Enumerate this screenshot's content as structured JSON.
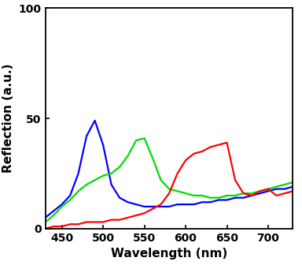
{
  "chart_data": {
    "type": "line",
    "x_label": "Wavelength (nm)",
    "y_label": "Reflection (a.u.)",
    "x": [
      430,
      440,
      450,
      460,
      470,
      480,
      490,
      500,
      510,
      520,
      530,
      540,
      550,
      560,
      570,
      580,
      590,
      600,
      610,
      620,
      630,
      640,
      650,
      660,
      670,
      680,
      690,
      700,
      710,
      720,
      730
    ],
    "series": [
      {
        "color": "#0000ff",
        "values": [
          5,
          8,
          11,
          15,
          25,
          42,
          49,
          38,
          20,
          14,
          12,
          11,
          10,
          10,
          10,
          10,
          11,
          11,
          11,
          12,
          12,
          13,
          13,
          14,
          14,
          15,
          16,
          17,
          18,
          18,
          19
        ]
      },
      {
        "color": "#00dd00",
        "values": [
          3,
          6,
          10,
          13,
          17,
          20,
          22,
          24,
          25,
          28,
          33,
          40,
          41,
          32,
          22,
          18,
          17,
          16,
          15,
          15,
          14,
          14,
          15,
          15,
          16,
          16,
          17,
          18,
          19,
          20,
          21
        ]
      },
      {
        "color": "#ff0000",
        "values": [
          0,
          1,
          1,
          2,
          2,
          3,
          3,
          3,
          4,
          4,
          5,
          6,
          7,
          9,
          11,
          16,
          25,
          31,
          34,
          35,
          37,
          38,
          39,
          22,
          16,
          15,
          17,
          18,
          15,
          16,
          17
        ]
      }
    ],
    "xlim": [
      430,
      730
    ],
    "ylim": [
      0,
      100
    ],
    "xticks": [
      450,
      500,
      550,
      600,
      650,
      700
    ],
    "yticks": [
      0,
      50,
      100
    ],
    "grid": false
  }
}
